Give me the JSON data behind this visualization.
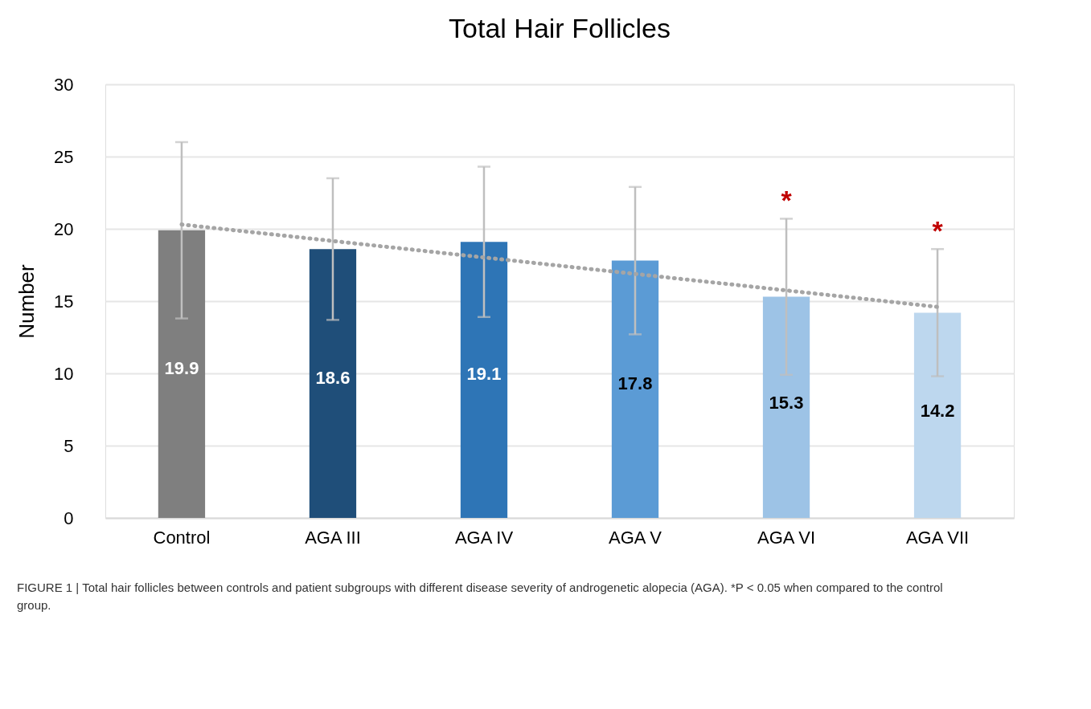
{
  "chart_data": {
    "type": "bar",
    "title": "Total Hair Follicles",
    "ylabel": "Number",
    "categories": [
      "Control",
      "AGA III",
      "AGA IV",
      "AGA V",
      "AGA VI",
      "AGA VII"
    ],
    "series": [
      {
        "values": [
          19.9,
          18.6,
          19.1,
          17.8,
          15.3,
          14.2
        ],
        "value_labels": [
          "19.9",
          "18.6",
          "19.1",
          "17.8",
          "15.3",
          "14.2"
        ],
        "colors": [
          "#7f7f7f",
          "#1f4e79",
          "#2e75b6",
          "#5b9bd5",
          "#9dc3e6",
          "#bdd7ee"
        ],
        "errors": [
          6.1,
          4.9,
          5.2,
          5.1,
          5.4,
          4.4
        ]
      },
      {
        "type": "line",
        "color": "#a5a5a5",
        "line_style": "dotted",
        "values": [
          20.3,
          19.16,
          18.02,
          16.88,
          15.74,
          14.6
        ]
      }
    ],
    "ylim": [
      0,
      30
    ],
    "yticks": [
      0,
      5,
      10,
      15,
      20,
      25,
      30
    ],
    "grid": "y",
    "annotations": [
      "*",
      "*",
      "FIGURE 1 | Total hair follicles between controls and patient subgroups with different disease severity of androgenetic alopecia (AGA). *P < 0.05 when compared to the control group."
    ]
  }
}
